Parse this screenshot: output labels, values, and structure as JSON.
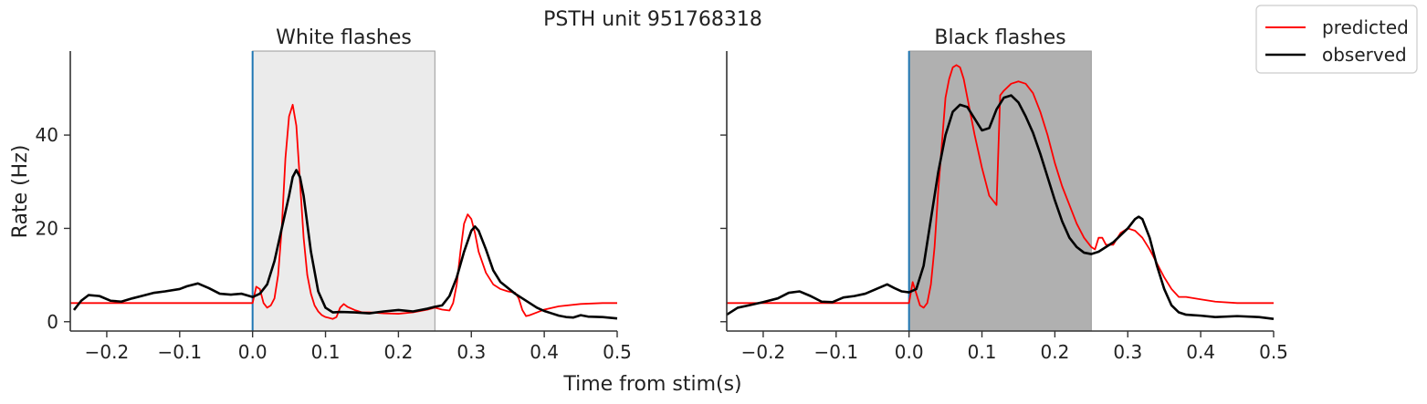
{
  "figure": {
    "suptitle": "PSTH unit 951768318",
    "xlabel": "Time from stim(s)",
    "ylabel": "Rate (Hz)"
  },
  "chart_data": {
    "type": "line",
    "xlim": [
      -0.25,
      0.5
    ],
    "ylim": [
      -2,
      58
    ],
    "xticks": [
      -0.2,
      -0.1,
      0.0,
      0.1,
      0.2,
      0.3,
      0.4,
      0.5
    ],
    "xtick_labels": [
      "−0.2",
      "−0.1",
      "0.0",
      "0.1",
      "0.2",
      "0.3",
      "0.4",
      "0.5"
    ],
    "yticks": [
      0,
      20,
      40
    ],
    "ytick_labels": [
      "0",
      "20",
      "40"
    ],
    "legend": {
      "position": "top-right",
      "entries": [
        {
          "label": "predicted",
          "color": "#ff0000"
        },
        {
          "label": "observed",
          "color": "#000000"
        }
      ]
    },
    "panels": [
      {
        "title": "White flashes",
        "stim_window": [
          0.0,
          0.25
        ],
        "stim_color": "#ebebeb",
        "onset_line_color": "#1f77b4",
        "series": [
          {
            "name": "predicted",
            "color": "#ff0000",
            "x": [
              -0.25,
              -0.001,
              0.0,
              0.005,
              0.01,
              0.015,
              0.02,
              0.025,
              0.03,
              0.035,
              0.04,
              0.045,
              0.05,
              0.055,
              0.06,
              0.065,
              0.07,
              0.075,
              0.08,
              0.085,
              0.09,
              0.095,
              0.1,
              0.105,
              0.11,
              0.115,
              0.12,
              0.125,
              0.13,
              0.14,
              0.15,
              0.16,
              0.18,
              0.2,
              0.22,
              0.24,
              0.25,
              0.26,
              0.27,
              0.275,
              0.28,
              0.285,
              0.29,
              0.295,
              0.3,
              0.305,
              0.31,
              0.32,
              0.33,
              0.34,
              0.35,
              0.36,
              0.365,
              0.37,
              0.375,
              0.38,
              0.39,
              0.4,
              0.42,
              0.45,
              0.48,
              0.5
            ],
            "y": [
              4,
              4,
              4,
              7.5,
              7,
              4,
              3,
              3.5,
              5,
              10,
              20,
              35,
              44,
              46.5,
              42,
              30,
              18,
              10,
              6,
              3.5,
              2.2,
              1.4,
              1,
              0.8,
              0.6,
              1,
              3,
              3.8,
              3.2,
              2.5,
              2.0,
              2.0,
              1.8,
              1.7,
              2.0,
              2.6,
              3.0,
              2.6,
              2.4,
              4,
              8,
              15,
              21,
              23,
              22,
              19,
              15,
              10.5,
              8,
              7,
              6.5,
              6.2,
              5,
              2.5,
              1.2,
              1.4,
              2.0,
              2.6,
              3.3,
              3.8,
              4.0,
              4.0
            ]
          },
          {
            "name": "observed",
            "color": "#000000",
            "x": [
              -0.245,
              -0.235,
              -0.225,
              -0.21,
              -0.195,
              -0.18,
              -0.165,
              -0.15,
              -0.135,
              -0.12,
              -0.1,
              -0.09,
              -0.075,
              -0.06,
              -0.045,
              -0.03,
              -0.015,
              0.0,
              0.01,
              0.02,
              0.03,
              0.04,
              0.05,
              0.055,
              0.06,
              0.065,
              0.07,
              0.08,
              0.09,
              0.1,
              0.11,
              0.12,
              0.14,
              0.16,
              0.18,
              0.2,
              0.22,
              0.24,
              0.25,
              0.26,
              0.27,
              0.28,
              0.29,
              0.3,
              0.305,
              0.31,
              0.32,
              0.33,
              0.34,
              0.36,
              0.38,
              0.39,
              0.4,
              0.41,
              0.42,
              0.43,
              0.44,
              0.45,
              0.46,
              0.48,
              0.5
            ],
            "y": [
              2.5,
              4.5,
              5.7,
              5.5,
              4.5,
              4.3,
              5.0,
              5.6,
              6.2,
              6.5,
              7.0,
              7.6,
              8.2,
              7.2,
              6.0,
              5.8,
              6.0,
              5.3,
              6.0,
              8.0,
              13,
              20,
              27,
              31,
              32.5,
              31,
              27,
              15,
              6.5,
              3,
              2,
              2.1,
              2.0,
              1.8,
              2.2,
              2.5,
              2.2,
              2.8,
              3.2,
              3.5,
              5.5,
              9.5,
              15,
              19.5,
              20.4,
              19.5,
              15.5,
              11,
              8.5,
              6,
              4,
              3,
              2.3,
              1.8,
              1.3,
              1.0,
              0.9,
              1.4,
              1.1,
              1.0,
              0.7
            ]
          }
        ]
      },
      {
        "title": "Black flashes",
        "stim_window": [
          0.0,
          0.25
        ],
        "stim_color": "#b0b0b0",
        "onset_line_color": "#1f77b4",
        "series": [
          {
            "name": "predicted",
            "color": "#ff0000",
            "x": [
              -0.25,
              -0.001,
              0.0,
              0.005,
              0.01,
              0.015,
              0.02,
              0.025,
              0.03,
              0.035,
              0.04,
              0.045,
              0.05,
              0.055,
              0.06,
              0.065,
              0.07,
              0.075,
              0.08,
              0.09,
              0.1,
              0.11,
              0.12,
              0.125,
              0.13,
              0.14,
              0.15,
              0.16,
              0.17,
              0.18,
              0.19,
              0.2,
              0.21,
              0.22,
              0.23,
              0.24,
              0.25,
              0.255,
              0.26,
              0.265,
              0.27,
              0.28,
              0.29,
              0.3,
              0.31,
              0.32,
              0.33,
              0.34,
              0.35,
              0.36,
              0.37,
              0.38,
              0.4,
              0.42,
              0.45,
              0.5
            ],
            "y": [
              4,
              4,
              4,
              8.5,
              6,
              3.5,
              3,
              4,
              8,
              16,
              28,
              38,
              48,
              52,
              54.5,
              55,
              54.5,
              52,
              48,
              40,
              33,
              27,
              25,
              48.5,
              49.5,
              51,
              51.5,
              51,
              49,
              45,
              40,
              34,
              29,
              25,
              21,
              18,
              16,
              15.5,
              18,
              18,
              16.5,
              16.5,
              19,
              20,
              19.5,
              18,
              15.5,
              12.5,
              9.5,
              7,
              5.3,
              5.3,
              4.8,
              4.3,
              4.0,
              4.0
            ]
          },
          {
            "name": "observed",
            "color": "#000000",
            "x": [
              -0.25,
              -0.235,
              -0.22,
              -0.2,
              -0.18,
              -0.165,
              -0.15,
              -0.135,
              -0.12,
              -0.105,
              -0.09,
              -0.075,
              -0.06,
              -0.045,
              -0.03,
              -0.02,
              -0.01,
              0.0,
              0.01,
              0.02,
              0.03,
              0.04,
              0.05,
              0.06,
              0.07,
              0.08,
              0.09,
              0.1,
              0.11,
              0.12,
              0.13,
              0.14,
              0.15,
              0.16,
              0.17,
              0.18,
              0.19,
              0.2,
              0.21,
              0.22,
              0.23,
              0.24,
              0.25,
              0.26,
              0.27,
              0.28,
              0.29,
              0.3,
              0.31,
              0.315,
              0.32,
              0.33,
              0.34,
              0.35,
              0.36,
              0.37,
              0.38,
              0.4,
              0.42,
              0.45,
              0.48,
              0.5
            ],
            "y": [
              1.5,
              3.0,
              3.5,
              4.2,
              5.0,
              6.2,
              6.5,
              5.5,
              4.3,
              4.2,
              5.2,
              5.5,
              6.0,
              7.0,
              8.0,
              7.2,
              6.5,
              6.3,
              7.0,
              12,
              22,
              32,
              40,
              45,
              46.5,
              46,
              43.5,
              41,
              41.5,
              45.5,
              48,
              48.5,
              47,
              44,
              40.5,
              36,
              31,
              26,
              21.5,
              18,
              16,
              14.8,
              14.5,
              15,
              16,
              17,
              18.5,
              20,
              22,
              22.5,
              22,
              18,
              12,
              7,
              3.5,
              2,
              1.5,
              1.3,
              1.0,
              1.2,
              1.0,
              0.6
            ]
          }
        ]
      }
    ]
  }
}
